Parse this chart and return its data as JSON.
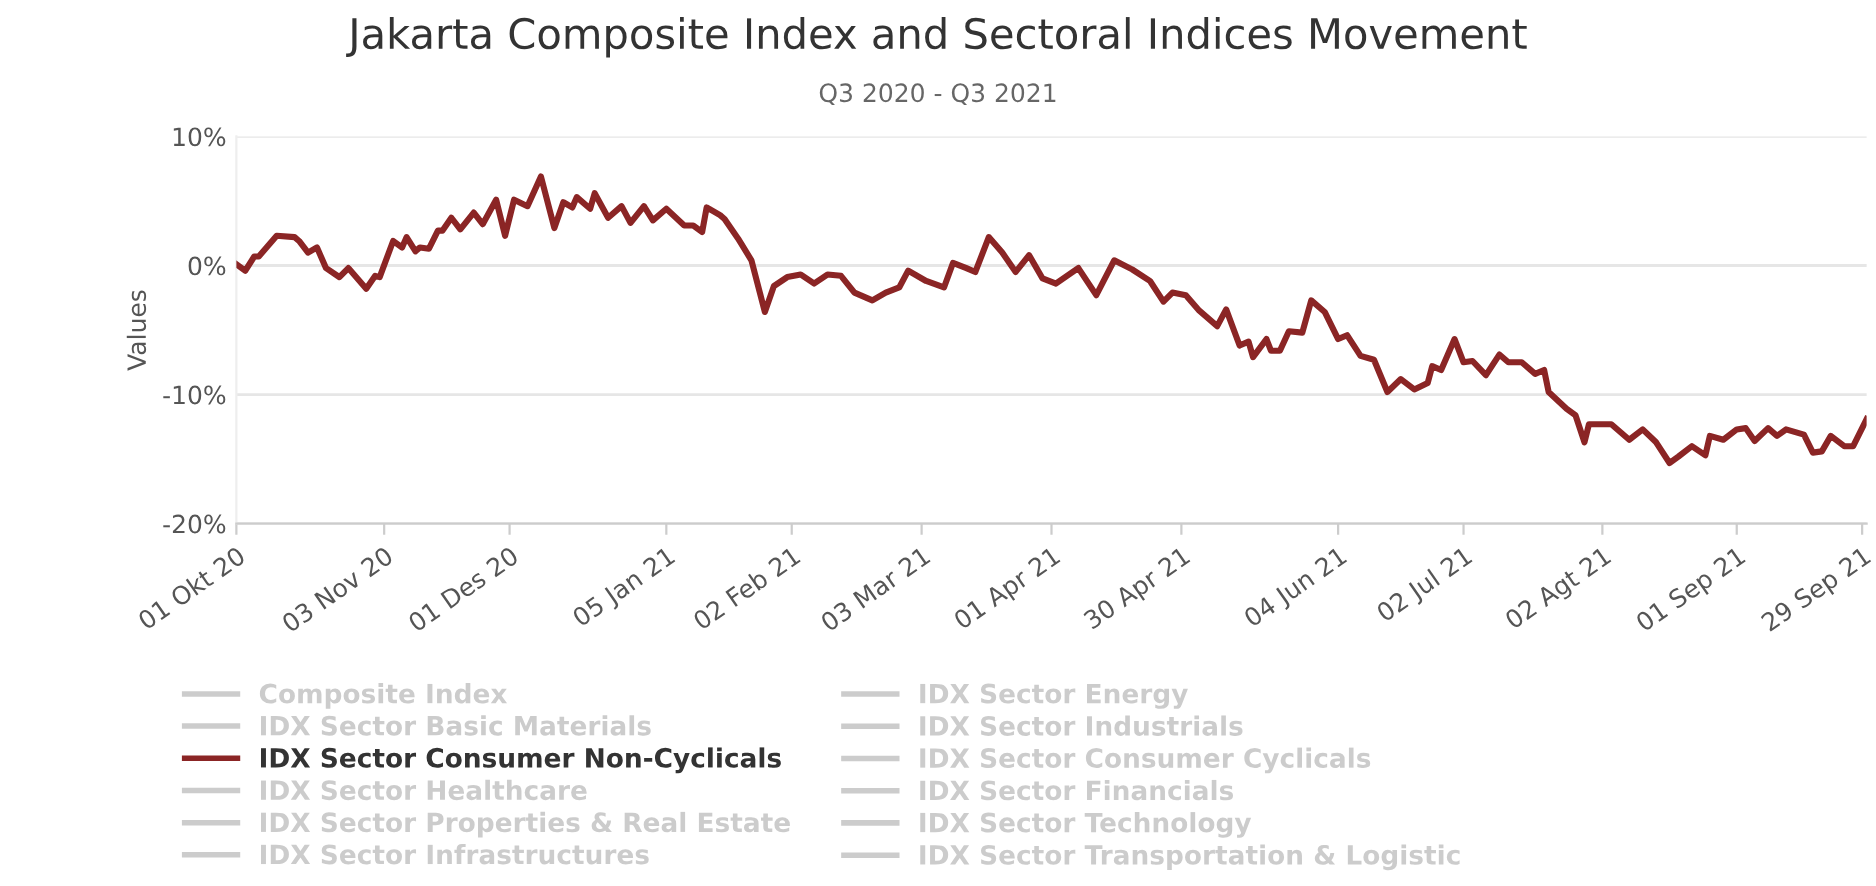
{
  "chart_data": {
    "type": "line",
    "title": "Jakarta Composite Index and Sectoral Indices Movement",
    "subtitle": "Q3 2020 - Q3 2021",
    "ylabel": "Values",
    "x": [
      "2020-10-01",
      "2020-10-03",
      "2020-10-05",
      "2020-10-06",
      "2020-10-10",
      "2020-10-14",
      "2020-10-15",
      "2020-10-17",
      "2020-10-19",
      "2020-10-21",
      "2020-10-24",
      "2020-10-26",
      "2020-10-30",
      "2020-11-01",
      "2020-11-02",
      "2020-11-05",
      "2020-11-07",
      "2020-11-08",
      "2020-11-10",
      "2020-11-11",
      "2020-11-13",
      "2020-11-15",
      "2020-11-16",
      "2020-11-18",
      "2020-11-20",
      "2020-11-23",
      "2020-11-25",
      "2020-11-28",
      "2020-11-30",
      "2020-12-02",
      "2020-12-05",
      "2020-12-08",
      "2020-12-11",
      "2020-12-13",
      "2020-12-15",
      "2020-12-16",
      "2020-12-19",
      "2020-12-20",
      "2020-12-23",
      "2020-12-26",
      "2020-12-28",
      "2020-12-31",
      "2021-01-02",
      "2021-01-05",
      "2021-01-09",
      "2021-01-11",
      "2021-01-13",
      "2021-01-14",
      "2021-01-17",
      "2021-01-18",
      "2021-01-21",
      "2021-01-24",
      "2021-01-27",
      "2021-01-29",
      "2021-02-01",
      "2021-02-04",
      "2021-02-07",
      "2021-02-10",
      "2021-02-13",
      "2021-02-16",
      "2021-02-20",
      "2021-02-23",
      "2021-02-26",
      "2021-02-28",
      "2021-03-04",
      "2021-03-08",
      "2021-03-10",
      "2021-03-13",
      "2021-03-15",
      "2021-03-18",
      "2021-03-21",
      "2021-03-24",
      "2021-03-27",
      "2021-03-30",
      "2021-04-02",
      "2021-04-07",
      "2021-04-11",
      "2021-04-15",
      "2021-04-19",
      "2021-04-23",
      "2021-04-26",
      "2021-04-28",
      "2021-05-01",
      "2021-05-04",
      "2021-05-08",
      "2021-05-10",
      "2021-05-13",
      "2021-05-15",
      "2021-05-16",
      "2021-05-19",
      "2021-05-20",
      "2021-05-22",
      "2021-05-24",
      "2021-05-27",
      "2021-05-29",
      "2021-06-01",
      "2021-06-04",
      "2021-06-06",
      "2021-06-09",
      "2021-06-12",
      "2021-06-15",
      "2021-06-18",
      "2021-06-21",
      "2021-06-24",
      "2021-06-25",
      "2021-06-27",
      "2021-06-30",
      "2021-07-02",
      "2021-07-04",
      "2021-07-07",
      "2021-07-10",
      "2021-07-12",
      "2021-07-15",
      "2021-07-18",
      "2021-07-20",
      "2021-07-21",
      "2021-07-25",
      "2021-07-27",
      "2021-07-29",
      "2021-07-30",
      "2021-08-04",
      "2021-08-08",
      "2021-08-11",
      "2021-08-14",
      "2021-08-17",
      "2021-08-19",
      "2021-08-22",
      "2021-08-25",
      "2021-08-26",
      "2021-08-29",
      "2021-09-01",
      "2021-09-03",
      "2021-09-05",
      "2021-09-08",
      "2021-09-10",
      "2021-09-12",
      "2021-09-16",
      "2021-09-18",
      "2021-09-20",
      "2021-09-22",
      "2021-09-25",
      "2021-09-27",
      "2021-09-30"
    ],
    "series": [
      {
        "name": "Composite Index",
        "color": "#cccccc",
        "values": [
          null,
          null,
          null,
          null,
          null,
          null,
          null,
          null,
          null,
          null,
          null,
          null,
          null,
          null,
          null,
          null,
          null,
          null,
          null,
          null,
          null,
          null,
          null,
          null,
          null,
          null,
          null,
          null,
          null,
          null,
          null,
          null,
          null,
          null,
          null,
          null,
          null,
          null,
          null,
          null,
          null,
          null,
          null,
          null,
          null,
          null,
          null,
          null,
          null,
          null,
          null,
          null,
          null,
          null,
          null,
          null,
          null,
          null,
          null,
          null,
          null,
          null,
          null,
          null,
          null,
          null,
          null,
          null,
          null,
          null,
          null,
          null,
          null,
          null,
          null,
          null,
          null,
          null,
          null,
          null,
          null,
          null,
          null,
          null,
          null,
          null,
          null,
          null,
          null,
          null,
          null,
          null,
          null,
          null,
          null,
          null,
          null,
          null,
          null,
          null,
          null,
          null,
          null,
          null,
          null,
          null,
          null,
          null,
          null,
          null,
          null,
          null,
          null,
          null,
          null,
          null,
          null,
          null,
          null,
          null,
          null,
          null,
          null,
          null,
          null,
          null,
          null,
          null,
          null,
          null,
          null,
          null,
          null,
          null,
          null,
          null,
          null,
          null,
          null,
          null,
          null,
          null,
          null
        ]
      },
      {
        "name": "IDX Sector Energy",
        "color": "#cccccc",
        "values": [
          null,
          null,
          null,
          null,
          null,
          null,
          null,
          null,
          null,
          null,
          null,
          null,
          null,
          null,
          null,
          null,
          null,
          null,
          null,
          null,
          null,
          null,
          null,
          null,
          null,
          null,
          null,
          null,
          null,
          null,
          null,
          null,
          null,
          null,
          null,
          null,
          null,
          null,
          null,
          null,
          null,
          null,
          null,
          null,
          null,
          null,
          null,
          null,
          null,
          null,
          null,
          null,
          null,
          null,
          null,
          null,
          null,
          null,
          null,
          null,
          null,
          null,
          null,
          null,
          null,
          null,
          null,
          null,
          null,
          null,
          null,
          null,
          null,
          null,
          null,
          null,
          null,
          null,
          null,
          null,
          null,
          null,
          null,
          null,
          null,
          null,
          null,
          null,
          null,
          null,
          null,
          null,
          null,
          null,
          null,
          null,
          null,
          null,
          null,
          null,
          null,
          null,
          null,
          null,
          null,
          null,
          null,
          null,
          null,
          null,
          null,
          null,
          null,
          null,
          null,
          null,
          null,
          null,
          null,
          null,
          null,
          null,
          null,
          null,
          null,
          null,
          null,
          null,
          null,
          null,
          null,
          null,
          null,
          null,
          null,
          null,
          null,
          null,
          null,
          null,
          null,
          null,
          null
        ]
      },
      {
        "name": "IDX Sector Basic Materials",
        "color": "#cccccc",
        "values": [
          null,
          null,
          null,
          null,
          null,
          null,
          null,
          null,
          null,
          null,
          null,
          null,
          null,
          null,
          null,
          null,
          null,
          null,
          null,
          null,
          null,
          null,
          null,
          null,
          null,
          null,
          null,
          null,
          null,
          null,
          null,
          null,
          null,
          null,
          null,
          null,
          null,
          null,
          null,
          null,
          null,
          null,
          null,
          null,
          null,
          null,
          null,
          null,
          null,
          null,
          null,
          null,
          null,
          null,
          null,
          null,
          null,
          null,
          null,
          null,
          null,
          null,
          null,
          null,
          null,
          null,
          null,
          null,
          null,
          null,
          null,
          null,
          null,
          null,
          null,
          null,
          null,
          null,
          null,
          null,
          null,
          null,
          null,
          null,
          null,
          null,
          null,
          null,
          null,
          null,
          null,
          null,
          null,
          null,
          null,
          null,
          null,
          null,
          null,
          null,
          null,
          null,
          null,
          null,
          null,
          null,
          null,
          null,
          null,
          null,
          null,
          null,
          null,
          null,
          null,
          null,
          null,
          null,
          null,
          null,
          null,
          null,
          null,
          null,
          null,
          null,
          null,
          null,
          null,
          null,
          null,
          null,
          null,
          null,
          null,
          null,
          null,
          null,
          null,
          null,
          null,
          null,
          null
        ]
      },
      {
        "name": "IDX Sector Industrials",
        "color": "#cccccc",
        "values": [
          null,
          null,
          null,
          null,
          null,
          null,
          null,
          null,
          null,
          null,
          null,
          null,
          null,
          null,
          null,
          null,
          null,
          null,
          null,
          null,
          null,
          null,
          null,
          null,
          null,
          null,
          null,
          null,
          null,
          null,
          null,
          null,
          null,
          null,
          null,
          null,
          null,
          null,
          null,
          null,
          null,
          null,
          null,
          null,
          null,
          null,
          null,
          null,
          null,
          null,
          null,
          null,
          null,
          null,
          null,
          null,
          null,
          null,
          null,
          null,
          null,
          null,
          null,
          null,
          null,
          null,
          null,
          null,
          null,
          null,
          null,
          null,
          null,
          null,
          null,
          null,
          null,
          null,
          null,
          null,
          null,
          null,
          null,
          null,
          null,
          null,
          null,
          null,
          null,
          null,
          null,
          null,
          null,
          null,
          null,
          null,
          null,
          null,
          null,
          null,
          null,
          null,
          null,
          null,
          null,
          null,
          null,
          null,
          null,
          null,
          null,
          null,
          null,
          null,
          null,
          null,
          null,
          null,
          null,
          null,
          null,
          null,
          null,
          null,
          null,
          null,
          null,
          null,
          null,
          null,
          null,
          null,
          null,
          null,
          null,
          null,
          null,
          null,
          null,
          null,
          null,
          null,
          null
        ]
      },
      {
        "name": "IDX Sector Consumer Non-Cyclicals",
        "color": "#8b2525",
        "values": [
          0.1,
          -0.4,
          0.7,
          0.7,
          2.3,
          2.2,
          1.9,
          1.0,
          1.4,
          -0.2,
          -0.9,
          -0.2,
          -1.8,
          -0.8,
          -0.9,
          1.9,
          1.4,
          2.2,
          1.1,
          1.4,
          1.3,
          2.7,
          2.7,
          3.7,
          2.8,
          4.1,
          3.2,
          5.1,
          2.3,
          5.1,
          4.6,
          6.9,
          2.9,
          4.9,
          4.5,
          5.3,
          4.4,
          5.6,
          3.7,
          4.6,
          3.3,
          4.6,
          3.5,
          4.4,
          3.1,
          3.1,
          2.6,
          4.5,
          3.9,
          3.6,
          2.1,
          0.4,
          -3.6,
          -1.6,
          -0.9,
          -0.7,
          -1.4,
          -0.7,
          -0.8,
          -2.1,
          -2.7,
          -2.1,
          -1.7,
          -0.4,
          -1.2,
          -1.7,
          0.2,
          -0.2,
          -0.5,
          2.2,
          1.0,
          -0.5,
          0.8,
          -1.0,
          -1.4,
          -0.2,
          -2.3,
          0.4,
          -0.3,
          -1.2,
          -2.8,
          -2.1,
          -2.3,
          -3.5,
          -4.7,
          -3.4,
          -6.2,
          -5.9,
          -7.1,
          -5.7,
          -6.6,
          -6.6,
          -5.1,
          -5.2,
          -2.7,
          -3.6,
          -5.7,
          -5.4,
          -7.0,
          -7.3,
          -9.8,
          -8.8,
          -9.6,
          -9.1,
          -7.8,
          -8.1,
          -5.7,
          -7.5,
          -7.4,
          -8.5,
          -6.9,
          -7.5,
          -7.5,
          -8.4,
          -8.1,
          -9.8,
          -11.1,
          -11.6,
          -13.7,
          -12.3,
          -12.3,
          -13.5,
          -12.7,
          -13.7,
          -15.3,
          -14.8,
          -14.0,
          -14.7,
          -13.2,
          -13.5,
          -12.7,
          -12.6,
          -13.6,
          -12.6,
          -13.2,
          -12.7,
          -13.1,
          -14.5,
          -14.4,
          -13.2,
          -14.0,
          -14.0,
          -11.9
        ]
      },
      {
        "name": "IDX Sector Consumer Cyclicals",
        "color": "#cccccc",
        "values": [
          null,
          null,
          null,
          null,
          null,
          null,
          null,
          null,
          null,
          null,
          null,
          null,
          null,
          null,
          null,
          null,
          null,
          null,
          null,
          null,
          null,
          null,
          null,
          null,
          null,
          null,
          null,
          null,
          null,
          null,
          null,
          null,
          null,
          null,
          null,
          null,
          null,
          null,
          null,
          null,
          null,
          null,
          null,
          null,
          null,
          null,
          null,
          null,
          null,
          null,
          null,
          null,
          null,
          null,
          null,
          null,
          null,
          null,
          null,
          null,
          null,
          null,
          null,
          null,
          null,
          null,
          null,
          null,
          null,
          null,
          null,
          null,
          null,
          null,
          null,
          null,
          null,
          null,
          null,
          null,
          null,
          null,
          null,
          null,
          null,
          null,
          null,
          null,
          null,
          null,
          null,
          null,
          null,
          null,
          null,
          null,
          null,
          null,
          null,
          null,
          null,
          null,
          null,
          null,
          null,
          null,
          null,
          null,
          null,
          null,
          null,
          null,
          null,
          null,
          null,
          null,
          null,
          null,
          null,
          null,
          null,
          null,
          null,
          null,
          null,
          null,
          null,
          null,
          null,
          null,
          null,
          null,
          null,
          null,
          null,
          null,
          null,
          null,
          null,
          null,
          null,
          null,
          null
        ]
      },
      {
        "name": "IDX Sector Healthcare",
        "color": "#cccccc",
        "values": [
          null,
          null,
          null,
          null,
          null,
          null,
          null,
          null,
          null,
          null,
          null,
          null,
          null,
          null,
          null,
          null,
          null,
          null,
          null,
          null,
          null,
          null,
          null,
          null,
          null,
          null,
          null,
          null,
          null,
          null,
          null,
          null,
          null,
          null,
          null,
          null,
          null,
          null,
          null,
          null,
          null,
          null,
          null,
          null,
          null,
          null,
          null,
          null,
          null,
          null,
          null,
          null,
          null,
          null,
          null,
          null,
          null,
          null,
          null,
          null,
          null,
          null,
          null,
          null,
          null,
          null,
          null,
          null,
          null,
          null,
          null,
          null,
          null,
          null,
          null,
          null,
          null,
          null,
          null,
          null,
          null,
          null,
          null,
          null,
          null,
          null,
          null,
          null,
          null,
          null,
          null,
          null,
          null,
          null,
          null,
          null,
          null,
          null,
          null,
          null,
          null,
          null,
          null,
          null,
          null,
          null,
          null,
          null,
          null,
          null,
          null,
          null,
          null,
          null,
          null,
          null,
          null,
          null,
          null,
          null,
          null,
          null,
          null,
          null,
          null,
          null,
          null,
          null,
          null,
          null,
          null,
          null,
          null,
          null,
          null,
          null,
          null,
          null,
          null,
          null,
          null,
          null,
          null
        ]
      },
      {
        "name": "IDX Sector Financials",
        "color": "#cccccc",
        "values": [
          null,
          null,
          null,
          null,
          null,
          null,
          null,
          null,
          null,
          null,
          null,
          null,
          null,
          null,
          null,
          null,
          null,
          null,
          null,
          null,
          null,
          null,
          null,
          null,
          null,
          null,
          null,
          null,
          null,
          null,
          null,
          null,
          null,
          null,
          null,
          null,
          null,
          null,
          null,
          null,
          null,
          null,
          null,
          null,
          null,
          null,
          null,
          null,
          null,
          null,
          null,
          null,
          null,
          null,
          null,
          null,
          null,
          null,
          null,
          null,
          null,
          null,
          null,
          null,
          null,
          null,
          null,
          null,
          null,
          null,
          null,
          null,
          null,
          null,
          null,
          null,
          null,
          null,
          null,
          null,
          null,
          null,
          null,
          null,
          null,
          null,
          null,
          null,
          null,
          null,
          null,
          null,
          null,
          null,
          null,
          null,
          null,
          null,
          null,
          null,
          null,
          null,
          null,
          null,
          null,
          null,
          null,
          null,
          null,
          null,
          null,
          null,
          null,
          null,
          null,
          null,
          null,
          null,
          null,
          null,
          null,
          null,
          null,
          null,
          null,
          null,
          null,
          null,
          null,
          null,
          null,
          null,
          null,
          null,
          null,
          null,
          null,
          null,
          null,
          null,
          null,
          null,
          null
        ]
      },
      {
        "name": "IDX Sector Properties & Real Estate",
        "color": "#cccccc",
        "values": [
          null,
          null,
          null,
          null,
          null,
          null,
          null,
          null,
          null,
          null,
          null,
          null,
          null,
          null,
          null,
          null,
          null,
          null,
          null,
          null,
          null,
          null,
          null,
          null,
          null,
          null,
          null,
          null,
          null,
          null,
          null,
          null,
          null,
          null,
          null,
          null,
          null,
          null,
          null,
          null,
          null,
          null,
          null,
          null,
          null,
          null,
          null,
          null,
          null,
          null,
          null,
          null,
          null,
          null,
          null,
          null,
          null,
          null,
          null,
          null,
          null,
          null,
          null,
          null,
          null,
          null,
          null,
          null,
          null,
          null,
          null,
          null,
          null,
          null,
          null,
          null,
          null,
          null,
          null,
          null,
          null,
          null,
          null,
          null,
          null,
          null,
          null,
          null,
          null,
          null,
          null,
          null,
          null,
          null,
          null,
          null,
          null,
          null,
          null,
          null,
          null,
          null,
          null,
          null,
          null,
          null,
          null,
          null,
          null,
          null,
          null,
          null,
          null,
          null,
          null,
          null,
          null,
          null,
          null,
          null,
          null,
          null,
          null,
          null,
          null,
          null,
          null,
          null,
          null,
          null,
          null,
          null,
          null,
          null,
          null,
          null,
          null,
          null,
          null,
          null,
          null,
          null,
          null
        ]
      },
      {
        "name": "IDX Sector Technology",
        "color": "#cccccc",
        "values": [
          null,
          null,
          null,
          null,
          null,
          null,
          null,
          null,
          null,
          null,
          null,
          null,
          null,
          null,
          null,
          null,
          null,
          null,
          null,
          null,
          null,
          null,
          null,
          null,
          null,
          null,
          null,
          null,
          null,
          null,
          null,
          null,
          null,
          null,
          null,
          null,
          null,
          null,
          null,
          null,
          null,
          null,
          null,
          null,
          null,
          null,
          null,
          null,
          null,
          null,
          null,
          null,
          null,
          null,
          null,
          null,
          null,
          null,
          null,
          null,
          null,
          null,
          null,
          null,
          null,
          null,
          null,
          null,
          null,
          null,
          null,
          null,
          null,
          null,
          null,
          null,
          null,
          null,
          null,
          null,
          null,
          null,
          null,
          null,
          null,
          null,
          null,
          null,
          null,
          null,
          null,
          null,
          null,
          null,
          null,
          null,
          null,
          null,
          null,
          null,
          null,
          null,
          null,
          null,
          null,
          null,
          null,
          null,
          null,
          null,
          null,
          null,
          null,
          null,
          null,
          null,
          null,
          null,
          null,
          null,
          null,
          null,
          null,
          null,
          null,
          null,
          null,
          null,
          null,
          null,
          null,
          null,
          null,
          null,
          null,
          null,
          null,
          null,
          null,
          null,
          null,
          null,
          null
        ]
      },
      {
        "name": "IDX Sector Infrastructures",
        "color": "#cccccc",
        "values": [
          null,
          null,
          null,
          null,
          null,
          null,
          null,
          null,
          null,
          null,
          null,
          null,
          null,
          null,
          null,
          null,
          null,
          null,
          null,
          null,
          null,
          null,
          null,
          null,
          null,
          null,
          null,
          null,
          null,
          null,
          null,
          null,
          null,
          null,
          null,
          null,
          null,
          null,
          null,
          null,
          null,
          null,
          null,
          null,
          null,
          null,
          null,
          null,
          null,
          null,
          null,
          null,
          null,
          null,
          null,
          null,
          null,
          null,
          null,
          null,
          null,
          null,
          null,
          null,
          null,
          null,
          null,
          null,
          null,
          null,
          null,
          null,
          null,
          null,
          null,
          null,
          null,
          null,
          null,
          null,
          null,
          null,
          null,
          null,
          null,
          null,
          null,
          null,
          null,
          null,
          null,
          null,
          null,
          null,
          null,
          null,
          null,
          null,
          null,
          null,
          null,
          null,
          null,
          null,
          null,
          null,
          null,
          null,
          null,
          null,
          null,
          null,
          null,
          null,
          null,
          null,
          null,
          null,
          null,
          null,
          null,
          null,
          null,
          null,
          null,
          null,
          null,
          null,
          null,
          null,
          null,
          null,
          null,
          null,
          null,
          null,
          null,
          null,
          null,
          null,
          null,
          null,
          null
        ]
      },
      {
        "name": "IDX Sector Transportation & Logistic",
        "color": "#cccccc",
        "values": [
          null,
          null,
          null,
          null,
          null,
          null,
          null,
          null,
          null,
          null,
          null,
          null,
          null,
          null,
          null,
          null,
          null,
          null,
          null,
          null,
          null,
          null,
          null,
          null,
          null,
          null,
          null,
          null,
          null,
          null,
          null,
          null,
          null,
          null,
          null,
          null,
          null,
          null,
          null,
          null,
          null,
          null,
          null,
          null,
          null,
          null,
          null,
          null,
          null,
          null,
          null,
          null,
          null,
          null,
          null,
          null,
          null,
          null,
          null,
          null,
          null,
          null,
          null,
          null,
          null,
          null,
          null,
          null,
          null,
          null,
          null,
          null,
          null,
          null,
          null,
          null,
          null,
          null,
          null,
          null,
          null,
          null,
          null,
          null,
          null,
          null,
          null,
          null,
          null,
          null,
          null,
          null,
          null,
          null,
          null,
          null,
          null,
          null,
          null,
          null,
          null,
          null,
          null,
          null,
          null,
          null,
          null,
          null,
          null,
          null,
          null,
          null,
          null,
          null,
          null,
          null,
          null,
          null,
          null,
          null,
          null,
          null,
          null,
          null,
          null,
          null,
          null,
          null,
          null,
          null,
          null,
          null,
          null,
          null,
          null,
          null,
          null,
          null,
          null,
          null,
          null,
          null,
          null
        ]
      }
    ],
    "xlim": [
      "2020-10-01",
      "2021-09-30"
    ],
    "xticks": [
      {
        "value": "2020-10-01",
        "label": "01 Okt 20"
      },
      {
        "value": "2020-11-03",
        "label": "03 Nov 20"
      },
      {
        "value": "2020-12-01",
        "label": "01 Des 20"
      },
      {
        "value": "2021-01-05",
        "label": "05 Jan 21"
      },
      {
        "value": "2021-02-02",
        "label": "02 Feb 21"
      },
      {
        "value": "2021-03-03",
        "label": "03 Mar 21"
      },
      {
        "value": "2021-04-01",
        "label": "01 Apr 21"
      },
      {
        "value": "2021-04-30",
        "label": "30 Apr 21"
      },
      {
        "value": "2021-06-04",
        "label": "04 Jun 21"
      },
      {
        "value": "2021-07-02",
        "label": "02 Jul 21"
      },
      {
        "value": "2021-08-02",
        "label": "02 Agt 21"
      },
      {
        "value": "2021-09-01",
        "label": "01 Sep 21"
      },
      {
        "value": "2021-09-29",
        "label": "29 Sep 21"
      }
    ],
    "ylim": [
      -20,
      10
    ],
    "yticks": [
      {
        "value": -20,
        "label": "-20%"
      },
      {
        "value": -10,
        "label": "-10%"
      },
      {
        "value": 0,
        "label": "0%"
      },
      {
        "value": 10,
        "label": "10%"
      }
    ],
    "grid": "y",
    "legend": "bottom",
    "marker": "none",
    "line_style": "solid"
  }
}
